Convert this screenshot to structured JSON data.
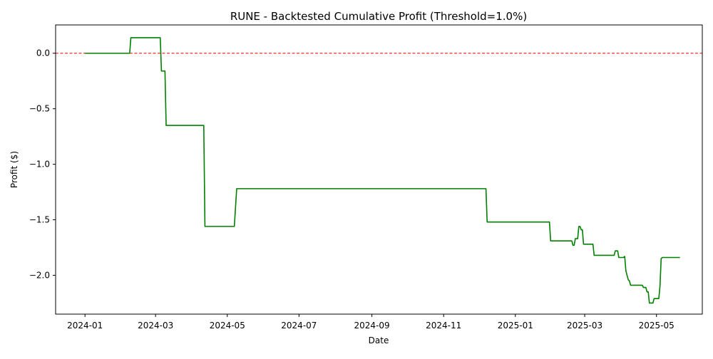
{
  "chart_data": {
    "type": "line",
    "title": "RUNE - Backtested Cumulative Profit (Threshold=1.0%)",
    "xlabel": "Date",
    "ylabel": "Profit ($)",
    "xlim": [
      "2023-12-07",
      "2025-06-09"
    ],
    "ylim": [
      -2.35,
      0.255
    ],
    "x_ticks": [
      "2024-01-01",
      "2024-03-01",
      "2024-05-01",
      "2024-07-01",
      "2024-09-01",
      "2024-11-01",
      "2025-01-01",
      "2025-03-01",
      "2025-05-01"
    ],
    "x_tick_labels": [
      "2024-01",
      "2024-03",
      "2024-05",
      "2024-07",
      "2024-09",
      "2024-11",
      "2025-01",
      "2025-03",
      "2025-05"
    ],
    "y_ticks": [
      0.0,
      -0.5,
      -1.0,
      -1.5,
      -2.0
    ],
    "y_tick_labels": [
      "0.0",
      "−0.5",
      "−1.0",
      "−1.5",
      "−2.0"
    ],
    "grid": false,
    "reference_line": {
      "y": 0.0,
      "color": "#ff0000",
      "style": "dashed"
    },
    "series": [
      {
        "color": "#008000",
        "points": [
          [
            "2024-01-01",
            0.0
          ],
          [
            "2024-02-08",
            0.0
          ],
          [
            "2024-02-09",
            0.14
          ],
          [
            "2024-03-05",
            0.14
          ],
          [
            "2024-03-06",
            -0.16
          ],
          [
            "2024-03-09",
            -0.16
          ],
          [
            "2024-03-10",
            -0.65
          ],
          [
            "2024-04-11",
            -0.65
          ],
          [
            "2024-04-12",
            -1.56
          ],
          [
            "2024-05-07",
            -1.56
          ],
          [
            "2024-05-09",
            -1.22
          ],
          [
            "2024-12-07",
            -1.22
          ],
          [
            "2024-12-08",
            -1.52
          ],
          [
            "2025-01-30",
            -1.52
          ],
          [
            "2025-01-31",
            -1.69
          ],
          [
            "2025-02-18",
            -1.69
          ],
          [
            "2025-02-19",
            -1.73
          ],
          [
            "2025-02-20",
            -1.73
          ],
          [
            "2025-02-21",
            -1.67
          ],
          [
            "2025-02-23",
            -1.67
          ],
          [
            "2025-02-24",
            -1.56
          ],
          [
            "2025-02-25",
            -1.56
          ],
          [
            "2025-02-26",
            -1.59
          ],
          [
            "2025-02-27",
            -1.59
          ],
          [
            "2025-02-28",
            -1.72
          ],
          [
            "2025-03-08",
            -1.72
          ],
          [
            "2025-03-09",
            -1.82
          ],
          [
            "2025-03-26",
            -1.82
          ],
          [
            "2025-03-27",
            -1.78
          ],
          [
            "2025-03-29",
            -1.78
          ],
          [
            "2025-03-30",
            -1.84
          ],
          [
            "2025-04-03",
            -1.84
          ],
          [
            "2025-04-04",
            -1.83
          ],
          [
            "2025-04-05",
            -1.96
          ],
          [
            "2025-04-07",
            -2.04
          ],
          [
            "2025-04-08",
            -2.05
          ],
          [
            "2025-04-09",
            -2.09
          ],
          [
            "2025-04-19",
            -2.09
          ],
          [
            "2025-04-20",
            -2.11
          ],
          [
            "2025-04-22",
            -2.11
          ],
          [
            "2025-04-23",
            -2.15
          ],
          [
            "2025-04-24",
            -2.15
          ],
          [
            "2025-04-25",
            -2.25
          ],
          [
            "2025-04-28",
            -2.25
          ],
          [
            "2025-04-29",
            -2.21
          ],
          [
            "2025-05-03",
            -2.21
          ],
          [
            "2025-05-04",
            -2.1
          ],
          [
            "2025-05-05",
            -1.85
          ],
          [
            "2025-05-06",
            -1.84
          ],
          [
            "2025-05-21",
            -1.84
          ]
        ]
      }
    ]
  }
}
